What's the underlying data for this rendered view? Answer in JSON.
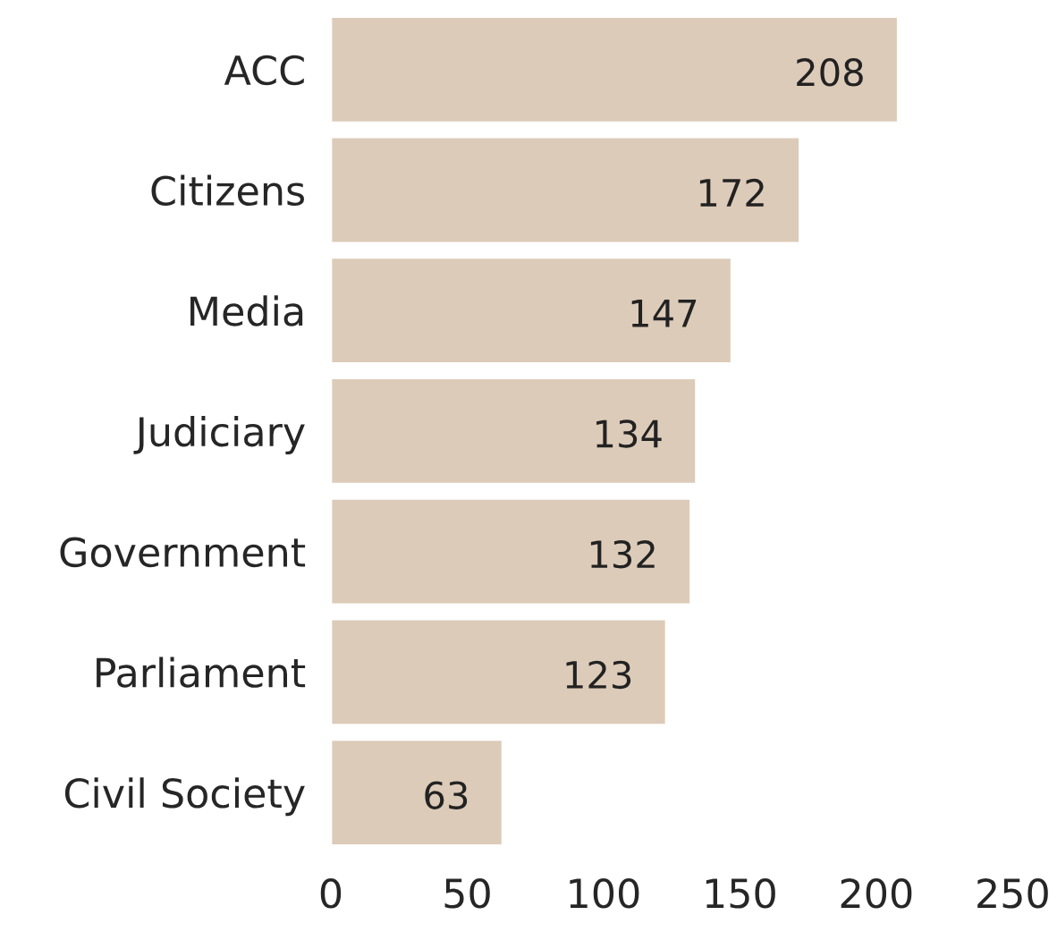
{
  "chart_data": {
    "type": "bar",
    "orientation": "horizontal",
    "categories": [
      "ACC",
      "Citizens",
      "Media",
      "Judiciary",
      "Government",
      "Parliament",
      "Civil Society"
    ],
    "values": [
      208,
      172,
      147,
      134,
      132,
      123,
      63
    ],
    "color": "#dccbb8",
    "xlim": [
      0,
      250
    ],
    "xticks": [
      0,
      50,
      100,
      150,
      200,
      250
    ],
    "data_labels": true,
    "grid": false
  }
}
